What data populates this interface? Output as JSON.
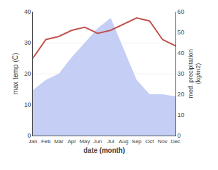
{
  "chart_data": {
    "type": "line",
    "xlabel": "date (month)",
    "ylabel": "max temp (C)",
    "y2label": "med. precipitation\n(kg/m2)",
    "categories": [
      "Jan",
      "Feb",
      "Mar",
      "Apr",
      "May",
      "Jun",
      "Jul",
      "Aug",
      "Sep",
      "Oct",
      "Nov",
      "Dec"
    ],
    "series": [
      {
        "type": "area",
        "axis": "y2",
        "color": "#c5cff5",
        "values": [
          22,
          27,
          30,
          38,
          45,
          52,
          57,
          42,
          27,
          20,
          20,
          19
        ]
      },
      {
        "type": "line",
        "color": "#c0504d",
        "values": [
          25,
          31,
          32,
          34,
          35,
          33,
          34,
          36,
          38,
          37,
          31,
          29
        ]
      }
    ],
    "ylim": [
      0,
      40
    ],
    "yticks": [
      0,
      10,
      20,
      30,
      40
    ],
    "y2lim": [
      0,
      60
    ],
    "y2ticks": [
      0,
      10,
      20,
      30,
      40,
      50,
      60
    ],
    "grid": true
  }
}
